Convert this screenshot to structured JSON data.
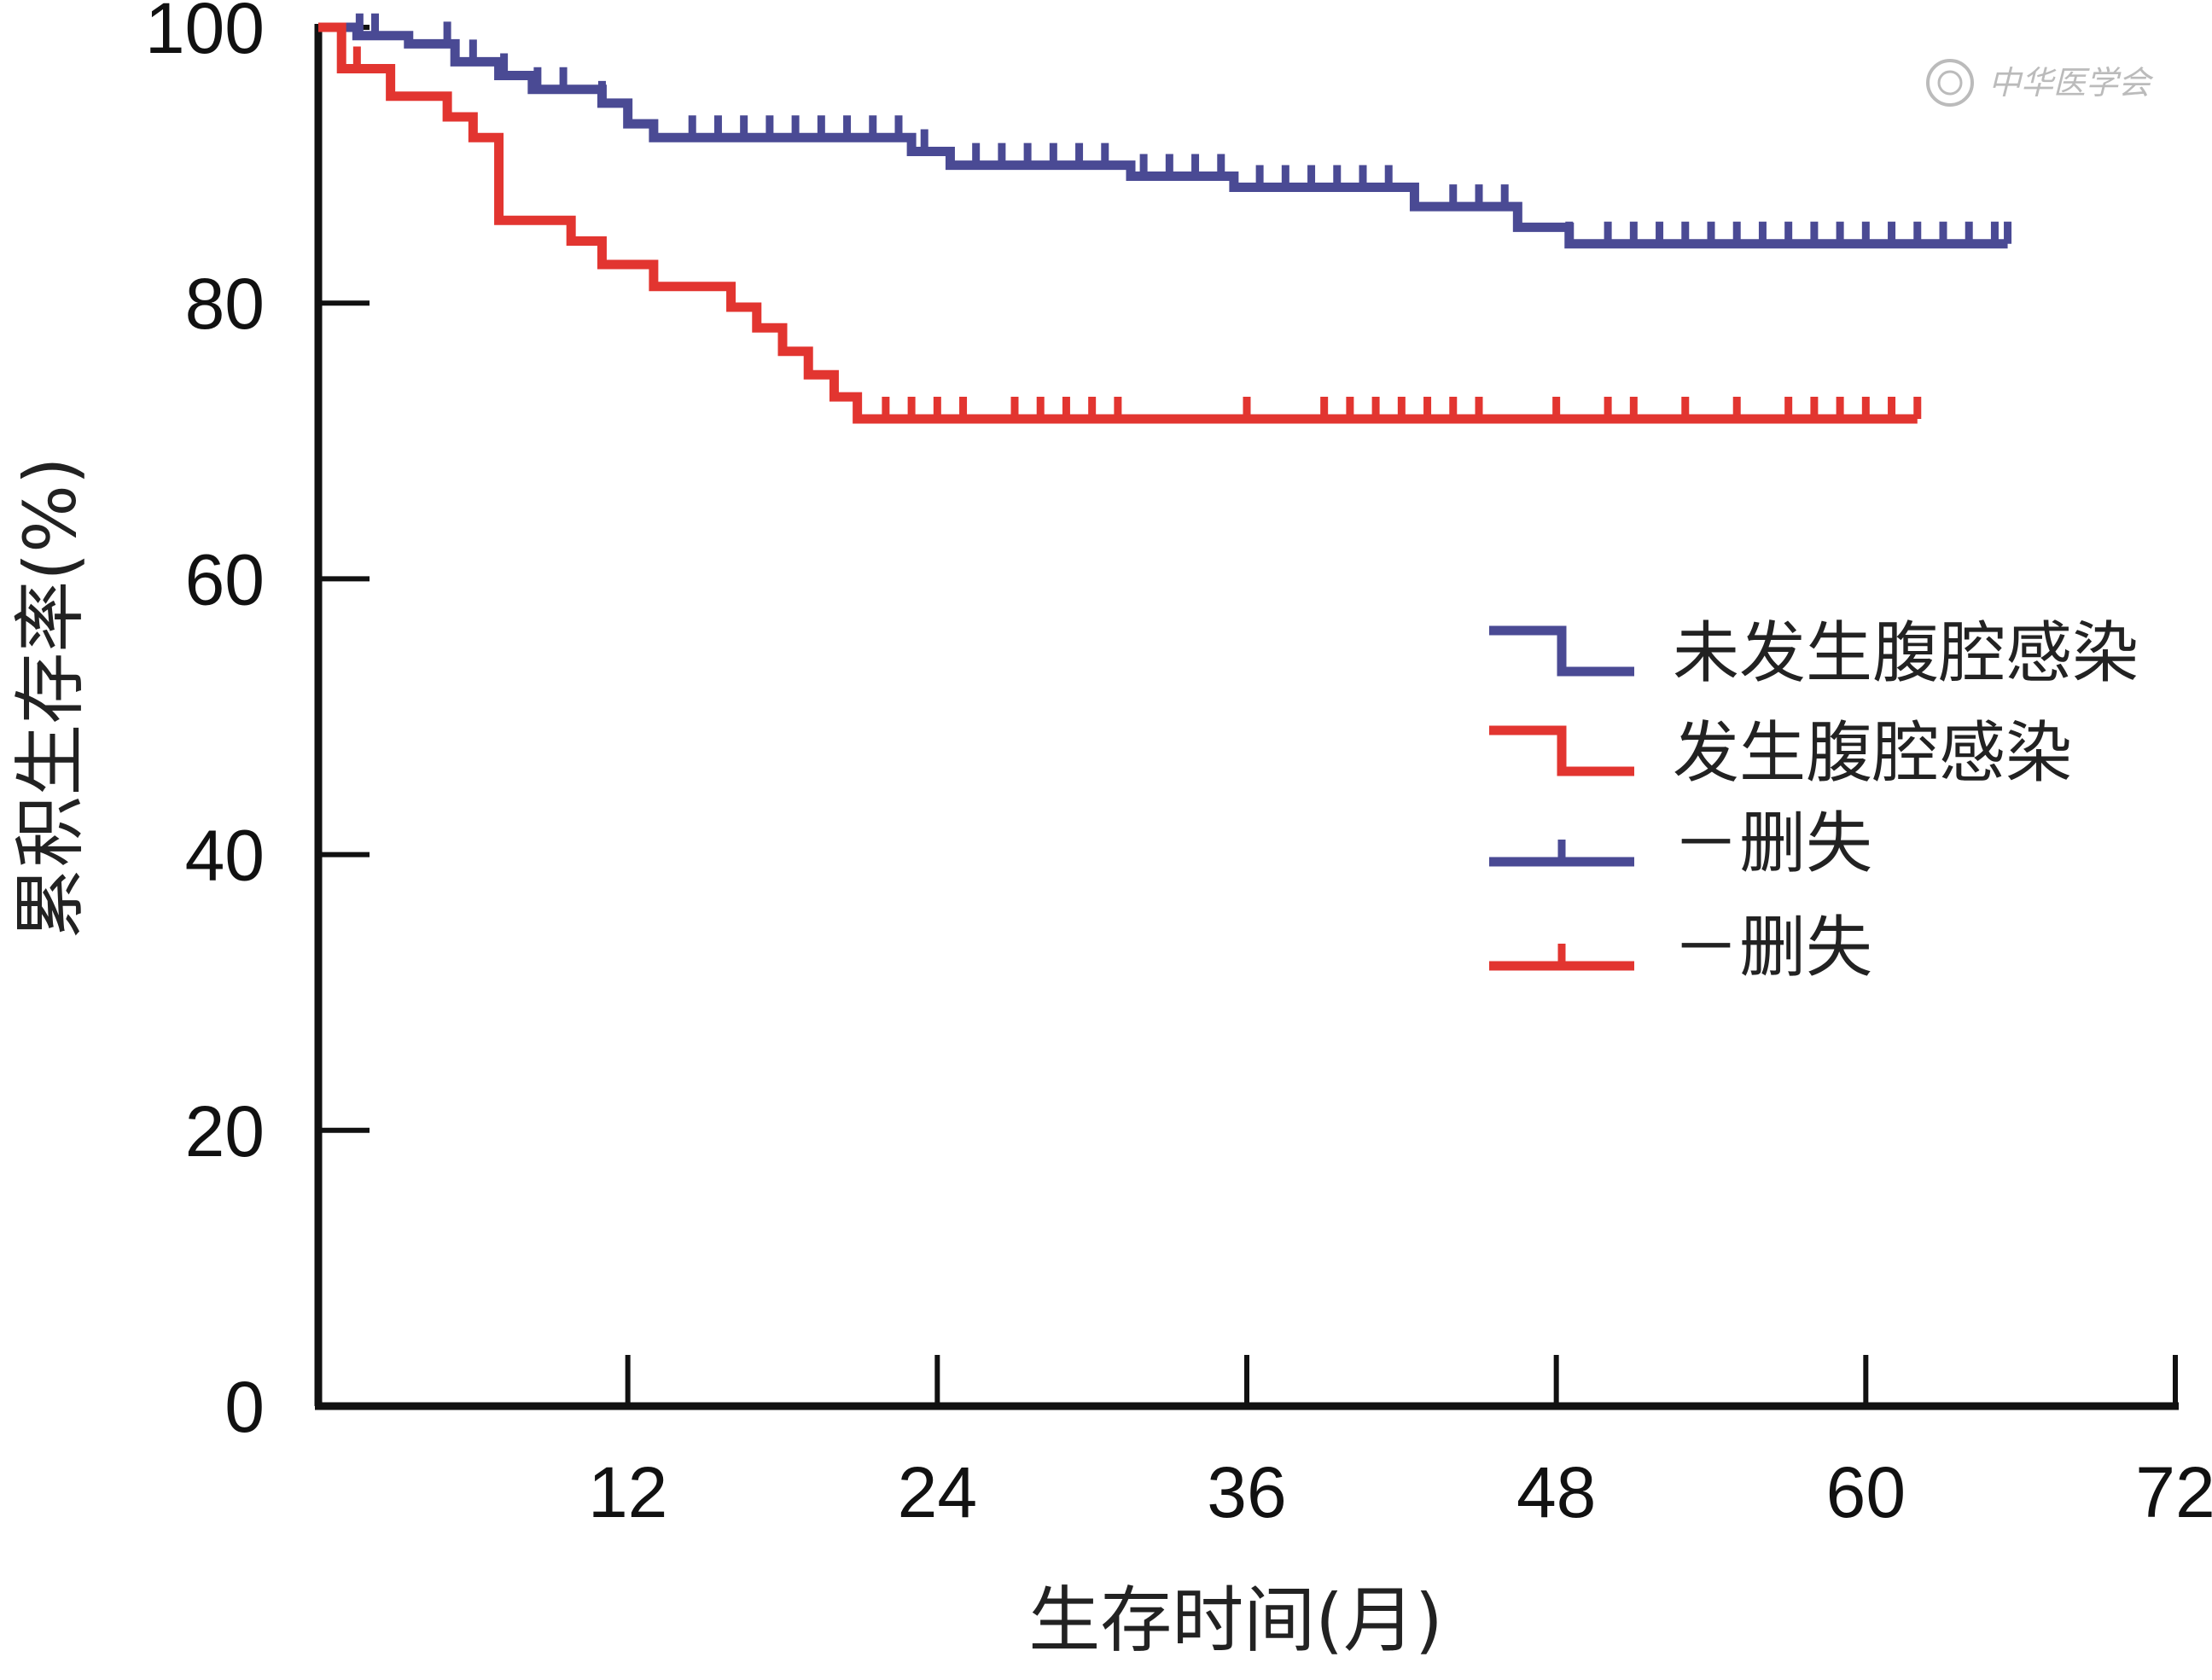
{
  "watermark": {
    "text": "中华医学会"
  },
  "colors": {
    "series1": "#4a4a94",
    "series2": "#e23530",
    "axis": "#111111",
    "text": "#111111"
  },
  "chart_data": {
    "type": "line",
    "subtype": "kaplan-meier-step",
    "title": "",
    "xlabel": "生存时间(月)",
    "ylabel": "累积生存率(%)",
    "xlim": [
      0,
      72
    ],
    "ylim": [
      0,
      100
    ],
    "xticks": [
      12,
      24,
      36,
      48,
      60,
      72
    ],
    "yticks": [
      0,
      20,
      40,
      60,
      80,
      100
    ],
    "grid": false,
    "legend_position": "right-middle",
    "series": [
      {
        "name": "未发生腹腔感染",
        "color": "#4a4a94",
        "steps": [
          [
            0,
            100
          ],
          [
            1.5,
            99.4
          ],
          [
            3.5,
            98.8
          ],
          [
            5.3,
            97.5
          ],
          [
            7.0,
            96.5
          ],
          [
            8.3,
            95.5
          ],
          [
            11.0,
            94.5
          ],
          [
            12.0,
            93.0
          ],
          [
            13.0,
            92.0
          ],
          [
            23.0,
            91.0
          ],
          [
            24.5,
            90.0
          ],
          [
            31.5,
            89.2
          ],
          [
            35.5,
            88.4
          ],
          [
            42.5,
            87.0
          ],
          [
            46.5,
            85.5
          ],
          [
            48.5,
            84.3
          ],
          [
            65.5,
            84.3
          ]
        ],
        "censored": [
          1.6,
          2.2,
          5.0,
          6.0,
          7.2,
          8.5,
          9.5,
          11.0,
          14.5,
          15.5,
          16.5,
          17.5,
          18.5,
          19.5,
          20.5,
          21.5,
          22.5,
          23.5,
          25.5,
          26.5,
          27.5,
          28.5,
          29.5,
          30.5,
          32.0,
          33.0,
          34.0,
          35.0,
          36.5,
          37.5,
          38.5,
          39.5,
          40.5,
          41.5,
          42.5,
          44.0,
          45.0,
          46.0,
          48.5,
          50.0,
          51.0,
          52.0,
          53.0,
          54.0,
          55.0,
          56.0,
          57.0,
          58.0,
          59.0,
          60.0,
          61.0,
          62.0,
          63.0,
          64.0,
          65.0,
          65.5
        ]
      },
      {
        "name": "发生腹腔感染",
        "color": "#e23530",
        "steps": [
          [
            0,
            100
          ],
          [
            0.9,
            97.0
          ],
          [
            2.8,
            95.0
          ],
          [
            5.0,
            93.5
          ],
          [
            6.0,
            92.0
          ],
          [
            7.0,
            86.0
          ],
          [
            9.8,
            84.5
          ],
          [
            11.0,
            82.8
          ],
          [
            13.0,
            81.2
          ],
          [
            16.0,
            79.7
          ],
          [
            17.0,
            78.2
          ],
          [
            18.0,
            76.5
          ],
          [
            19.0,
            74.8
          ],
          [
            20.0,
            73.2
          ],
          [
            20.9,
            71.6
          ],
          [
            62.0,
            71.6
          ]
        ],
        "censored": [
          1.5,
          22.0,
          23.0,
          24.0,
          25.0,
          27.0,
          28.0,
          29.0,
          30.0,
          31.0,
          36.0,
          39.0,
          40.0,
          41.0,
          42.0,
          43.0,
          44.0,
          45.0,
          48.0,
          50.0,
          51.0,
          53.0,
          55.0,
          57.0,
          58.0,
          59.0,
          60.0,
          61.0,
          62.0
        ]
      }
    ],
    "legend": [
      {
        "label": "未发生腹腔感染",
        "color": "#4a4a94",
        "kind": "step"
      },
      {
        "label": "发生腹腔感染",
        "color": "#e23530",
        "kind": "step"
      },
      {
        "label": "－删失",
        "color": "#4a4a94",
        "kind": "censor"
      },
      {
        "label": "－删失",
        "color": "#e23530",
        "kind": "censor"
      }
    ]
  }
}
